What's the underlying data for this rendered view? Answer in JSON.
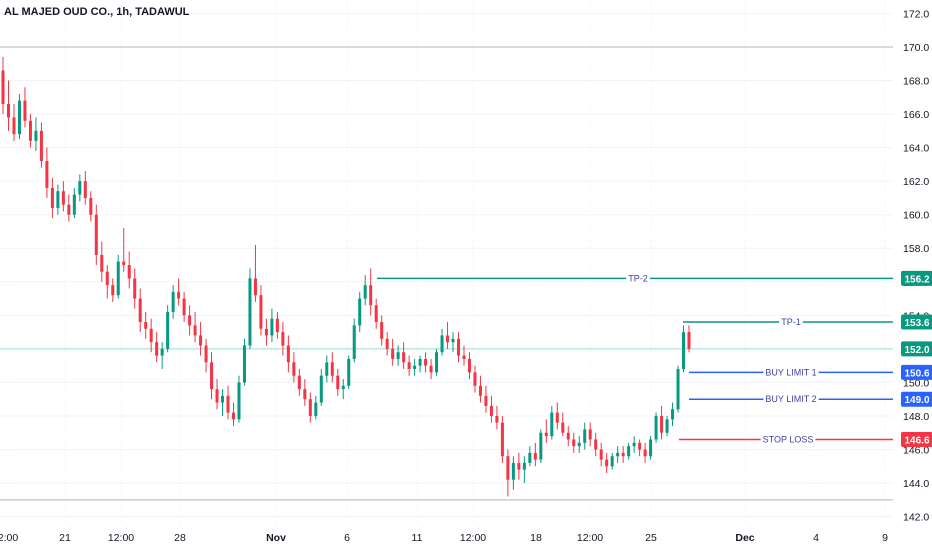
{
  "chart_data": {
    "type": "candlestick",
    "title": "AL MAJED OUD CO., 1h, TADAWUL",
    "ylim": [
      141.5,
      172.8
    ],
    "y_ticks": [
      142.0,
      144.0,
      146.0,
      148.0,
      150.0,
      152.0,
      154.0,
      156.0,
      158.0,
      160.0,
      162.0,
      164.0,
      166.0,
      168.0,
      170.0,
      172.0
    ],
    "x_ticks": [
      {
        "label": "2:00",
        "bold": false
      },
      {
        "label": "21",
        "bold": false
      },
      {
        "label": "12:00",
        "bold": false
      },
      {
        "label": "28",
        "bold": false
      },
      {
        "label": "Nov",
        "bold": true
      },
      {
        "label": "6",
        "bold": false
      },
      {
        "label": "11",
        "bold": false
      },
      {
        "label": "12:00",
        "bold": false
      },
      {
        "label": "18",
        "bold": false
      },
      {
        "label": "12:00",
        "bold": false
      },
      {
        "label": "25",
        "bold": false
      },
      {
        "label": "Dec",
        "bold": true
      },
      {
        "label": "4",
        "bold": false
      },
      {
        "label": "9",
        "bold": false
      }
    ],
    "horizontal_lines": [
      170.0,
      143.0
    ],
    "current_price": 152.0,
    "levels": [
      {
        "name": "TP-2",
        "value": 156.2,
        "color": "#089981"
      },
      {
        "name": "TP-1",
        "value": 153.6,
        "color": "#089981"
      },
      {
        "name": "BUY LIMIT 1",
        "value": 150.6,
        "color": "#2962ff"
      },
      {
        "name": "BUY LIMIT 2",
        "value": 149.0,
        "color": "#2962ff"
      },
      {
        "name": "STOP LOSS",
        "value": 146.6,
        "color": "#f23645"
      }
    ],
    "colors": {
      "up": "#089981",
      "down": "#f23645",
      "current": "#089981"
    },
    "candles": [
      [
        168.6,
        169.4,
        166.0,
        166.6
      ],
      [
        166.6,
        168.0,
        165.0,
        165.8
      ],
      [
        165.8,
        166.6,
        164.4,
        164.8
      ],
      [
        164.8,
        167.2,
        164.5,
        166.8
      ],
      [
        166.8,
        167.6,
        165.2,
        165.6
      ],
      [
        165.6,
        166.0,
        164.0,
        164.4
      ],
      [
        164.4,
        165.8,
        163.8,
        165.0
      ],
      [
        165.0,
        165.5,
        162.8,
        163.2
      ],
      [
        163.2,
        164.0,
        161.0,
        161.6
      ],
      [
        161.6,
        162.2,
        159.8,
        160.4
      ],
      [
        160.4,
        161.8,
        160.0,
        161.4
      ],
      [
        161.4,
        162.0,
        160.2,
        160.6
      ],
      [
        160.6,
        161.2,
        159.6,
        160.0
      ],
      [
        160.0,
        161.6,
        159.8,
        161.2
      ],
      [
        161.2,
        162.4,
        160.8,
        162.0
      ],
      [
        162.0,
        162.6,
        160.6,
        161.0
      ],
      [
        161.0,
        161.4,
        159.6,
        160.0
      ],
      [
        160.0,
        160.6,
        157.0,
        157.6
      ],
      [
        157.6,
        158.4,
        156.0,
        156.6
      ],
      [
        156.6,
        157.0,
        155.0,
        155.8
      ],
      [
        155.8,
        156.2,
        154.8,
        155.2
      ],
      [
        155.2,
        157.6,
        155.0,
        157.2
      ],
      [
        157.2,
        159.2,
        156.6,
        157.0
      ],
      [
        157.0,
        157.8,
        155.6,
        156.2
      ],
      [
        156.2,
        156.8,
        154.4,
        155.0
      ],
      [
        155.0,
        155.6,
        153.0,
        153.6
      ],
      [
        153.6,
        154.2,
        152.6,
        153.2
      ],
      [
        153.2,
        153.8,
        151.8,
        152.4
      ],
      [
        152.4,
        153.0,
        151.2,
        151.6
      ],
      [
        151.6,
        152.4,
        150.8,
        152.0
      ],
      [
        152.0,
        154.6,
        151.8,
        154.2
      ],
      [
        154.2,
        155.8,
        153.8,
        155.4
      ],
      [
        155.4,
        156.2,
        154.6,
        155.0
      ],
      [
        155.0,
        155.4,
        153.6,
        154.0
      ],
      [
        154.0,
        154.6,
        152.8,
        153.4
      ],
      [
        153.4,
        154.2,
        152.4,
        152.8
      ],
      [
        152.8,
        153.6,
        151.6,
        152.2
      ],
      [
        152.2,
        152.6,
        150.6,
        151.2
      ],
      [
        151.2,
        151.8,
        149.0,
        149.6
      ],
      [
        149.6,
        150.2,
        148.4,
        148.8
      ],
      [
        148.8,
        149.6,
        148.0,
        149.2
      ],
      [
        149.2,
        149.8,
        147.8,
        148.2
      ],
      [
        148.2,
        148.8,
        147.4,
        147.8
      ],
      [
        147.8,
        150.4,
        147.6,
        150.0
      ],
      [
        150.0,
        152.6,
        149.8,
        152.2
      ],
      [
        152.2,
        156.8,
        152.0,
        156.2
      ],
      [
        156.2,
        158.2,
        154.8,
        155.2
      ],
      [
        155.2,
        155.8,
        152.8,
        153.2
      ],
      [
        153.2,
        153.8,
        152.2,
        152.8
      ],
      [
        152.8,
        154.4,
        152.4,
        153.8
      ],
      [
        153.8,
        154.2,
        152.6,
        153.0
      ],
      [
        153.0,
        153.6,
        151.6,
        152.2
      ],
      [
        152.2,
        152.8,
        150.6,
        151.2
      ],
      [
        151.2,
        151.8,
        150.0,
        150.4
      ],
      [
        150.4,
        150.8,
        149.2,
        149.6
      ],
      [
        149.6,
        150.2,
        148.6,
        149.0
      ],
      [
        149.0,
        149.4,
        147.6,
        148.0
      ],
      [
        148.0,
        149.2,
        147.8,
        148.8
      ],
      [
        148.8,
        150.8,
        148.6,
        150.4
      ],
      [
        150.4,
        151.6,
        150.0,
        151.2
      ],
      [
        151.2,
        151.8,
        150.0,
        150.4
      ],
      [
        150.4,
        150.8,
        149.2,
        149.6
      ],
      [
        149.6,
        150.2,
        149.0,
        149.8
      ],
      [
        149.8,
        151.6,
        149.6,
        151.4
      ],
      [
        151.4,
        153.8,
        151.2,
        153.4
      ],
      [
        153.4,
        155.4,
        153.0,
        155.0
      ],
      [
        155.0,
        156.4,
        154.6,
        155.8
      ],
      [
        155.8,
        156.8,
        154.0,
        154.6
      ],
      [
        154.6,
        155.0,
        153.2,
        153.6
      ],
      [
        153.6,
        154.0,
        152.2,
        152.6
      ],
      [
        152.6,
        153.0,
        151.6,
        152.0
      ],
      [
        152.0,
        152.6,
        151.0,
        151.4
      ],
      [
        151.4,
        152.2,
        151.0,
        151.8
      ],
      [
        151.8,
        152.4,
        150.8,
        151.2
      ],
      [
        151.2,
        151.6,
        150.4,
        150.8
      ],
      [
        150.8,
        151.4,
        150.4,
        151.0
      ],
      [
        151.0,
        151.6,
        150.6,
        151.4
      ],
      [
        151.4,
        151.8,
        150.6,
        151.0
      ],
      [
        151.0,
        151.4,
        150.2,
        150.6
      ],
      [
        150.6,
        152.0,
        150.4,
        151.8
      ],
      [
        151.8,
        153.2,
        151.6,
        152.8
      ],
      [
        152.8,
        153.6,
        152.0,
        152.4
      ],
      [
        152.4,
        153.0,
        151.8,
        152.6
      ],
      [
        152.6,
        153.0,
        151.2,
        151.6
      ],
      [
        151.6,
        152.2,
        151.0,
        151.4
      ],
      [
        151.4,
        151.8,
        150.2,
        150.6
      ],
      [
        150.6,
        151.0,
        149.4,
        149.8
      ],
      [
        149.8,
        150.4,
        148.8,
        149.2
      ],
      [
        149.2,
        149.8,
        148.2,
        148.6
      ],
      [
        148.6,
        149.2,
        147.6,
        148.0
      ],
      [
        148.0,
        148.6,
        147.2,
        147.6
      ],
      [
        147.6,
        148.0,
        145.2,
        145.6
      ],
      [
        145.6,
        146.0,
        143.2,
        144.2
      ],
      [
        144.2,
        145.6,
        143.6,
        145.2
      ],
      [
        145.2,
        145.8,
        144.2,
        144.8
      ],
      [
        144.8,
        145.6,
        144.0,
        145.2
      ],
      [
        145.2,
        146.2,
        145.0,
        145.8
      ],
      [
        145.8,
        146.4,
        145.0,
        145.4
      ],
      [
        145.4,
        147.2,
        145.2,
        147.0
      ],
      [
        147.0,
        147.8,
        146.4,
        146.8
      ],
      [
        146.8,
        148.6,
        146.6,
        148.2
      ],
      [
        148.2,
        148.8,
        147.2,
        147.6
      ],
      [
        147.6,
        148.2,
        146.8,
        147.0
      ],
      [
        147.0,
        147.4,
        146.2,
        146.6
      ],
      [
        146.6,
        147.0,
        145.8,
        146.2
      ],
      [
        146.2,
        146.8,
        145.8,
        146.4
      ],
      [
        146.4,
        147.6,
        146.0,
        147.2
      ],
      [
        147.2,
        147.6,
        146.2,
        146.6
      ],
      [
        146.6,
        147.0,
        145.6,
        146.0
      ],
      [
        146.0,
        146.4,
        145.0,
        145.4
      ],
      [
        145.4,
        145.8,
        144.6,
        145.0
      ],
      [
        145.0,
        145.8,
        144.8,
        145.6
      ],
      [
        145.6,
        146.2,
        145.2,
        145.8
      ],
      [
        145.8,
        146.2,
        145.2,
        145.6
      ],
      [
        145.6,
        146.4,
        145.4,
        146.2
      ],
      [
        146.2,
        146.8,
        145.8,
        146.4
      ],
      [
        146.4,
        146.6,
        145.6,
        146.0
      ],
      [
        146.0,
        146.4,
        145.2,
        145.6
      ],
      [
        145.6,
        146.8,
        145.4,
        146.6
      ],
      [
        146.6,
        148.2,
        146.4,
        148.0
      ],
      [
        148.0,
        148.6,
        146.6,
        147.0
      ],
      [
        147.0,
        148.0,
        146.8,
        147.8
      ],
      [
        147.8,
        148.8,
        147.4,
        148.4
      ],
      [
        148.4,
        151.0,
        148.2,
        150.8
      ],
      [
        150.8,
        153.4,
        150.6,
        153.0
      ],
      [
        153.0,
        153.4,
        151.8,
        152.0
      ]
    ]
  },
  "levels_labels": {
    "tp2": "TP-2",
    "tp1": "TP-1",
    "buy1": "BUY LIMIT 1",
    "buy2": "BUY LIMIT 2",
    "sl": "STOP LOSS"
  }
}
